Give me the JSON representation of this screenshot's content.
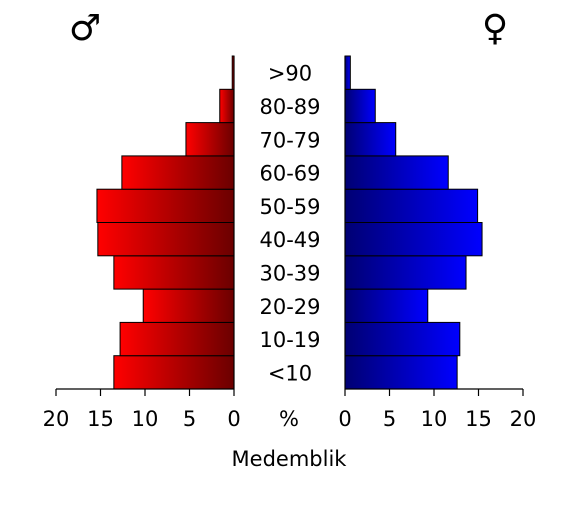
{
  "chart_data": {
    "type": "pyramid",
    "title": "Medemblik",
    "xlabel": "%",
    "categories": [
      "<10",
      "10-19",
      "20-29",
      "30-39",
      "40-49",
      "50-59",
      "60-69",
      "70-79",
      "80-89",
      ">90"
    ],
    "series": [
      {
        "name": "♂",
        "color": "#ff0000",
        "values": [
          13.5,
          12.8,
          10.2,
          13.5,
          15.3,
          15.4,
          12.6,
          5.4,
          1.6,
          0.2
        ]
      },
      {
        "name": "♀",
        "color": "#0000ff",
        "values": [
          12.6,
          12.9,
          9.3,
          13.6,
          15.4,
          14.9,
          11.6,
          5.7,
          3.4,
          0.6
        ]
      }
    ],
    "xlim": [
      0,
      20
    ],
    "xticks": [
      0,
      5,
      10,
      15,
      20
    ]
  }
}
